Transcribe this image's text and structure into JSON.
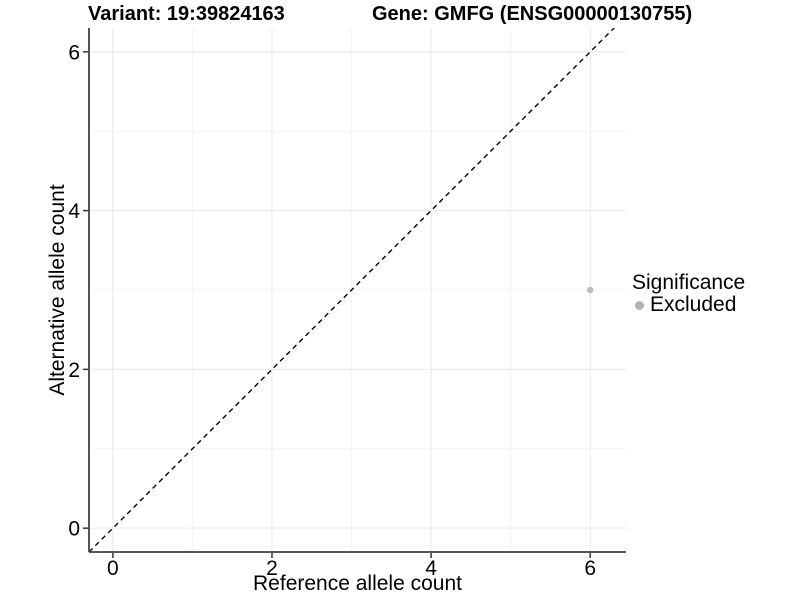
{
  "titles": {
    "variant": "Variant: 19:39824163",
    "gene": "Gene: GMFG (ENSG00000130755)"
  },
  "chart_data": {
    "type": "scatter",
    "xlabel": "Reference allele count",
    "ylabel": "Alternative allele count",
    "xlim": [
      -0.3,
      6.45
    ],
    "ylim": [
      -0.3,
      6.3
    ],
    "xticks": [
      0,
      2,
      4,
      6
    ],
    "yticks": [
      0,
      2,
      4,
      6
    ],
    "minor_xticks": [
      1,
      3,
      5
    ],
    "minor_yticks": [
      1,
      3,
      5
    ],
    "grid": "on",
    "points": [
      {
        "x": 6,
        "y": 3,
        "series": "Excluded"
      }
    ],
    "reference_line": {
      "kind": "identity y=x",
      "style": "dashed",
      "color": "#000000"
    },
    "legend": {
      "position": "right",
      "title": "Significance",
      "items": [
        {
          "label": "Excluded",
          "color": "#b3b3b3"
        }
      ]
    }
  },
  "colors": {
    "background": "#ffffff",
    "point": "#bdbdbd",
    "legend_dot": "#b3b3b3",
    "grid_major": "#e7e7e7",
    "grid_minor": "#f3f3f3",
    "axis_line": "#404040",
    "tick": "#333333",
    "text": "#000000"
  }
}
